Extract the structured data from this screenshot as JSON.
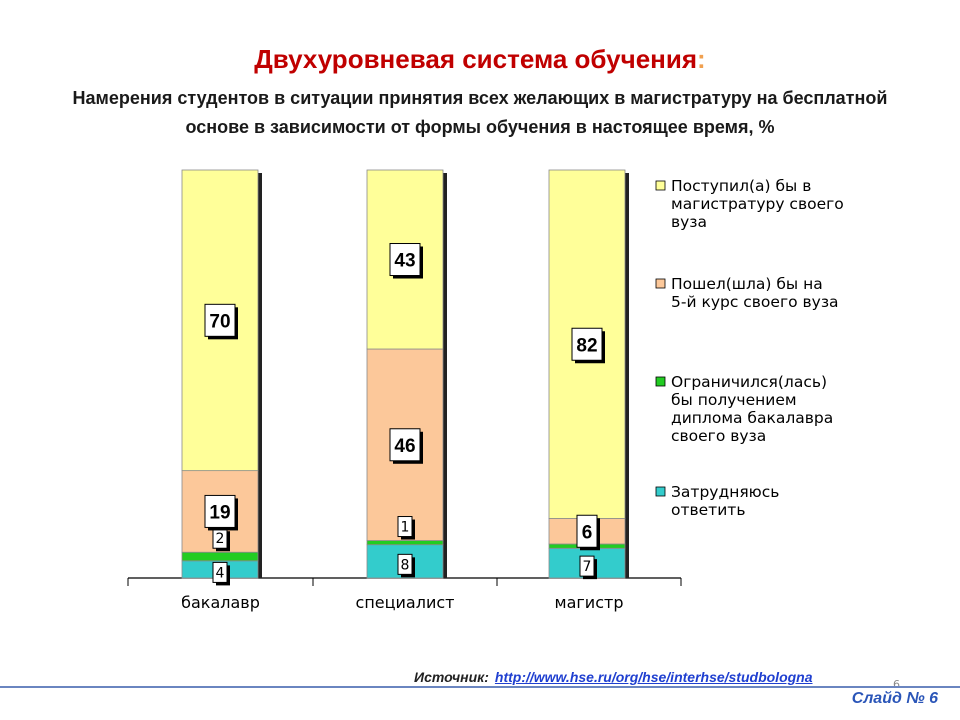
{
  "header": {
    "title": "Двухуровневая система обучения",
    "title_colon": ":",
    "subtitle": "Намерения студентов в ситуации принятия всех желающих в магистратуру на бесплатной основе в зависимости от формы обучения в настоящее время, %"
  },
  "chart_data": {
    "type": "bar",
    "stacked": true,
    "categories": [
      "бакалавр",
      "специалист",
      "магистр"
    ],
    "series": [
      {
        "name": "Затрудняюсь ответить",
        "values": [
          4,
          8,
          7
        ],
        "color": "#33cccc"
      },
      {
        "name": "Ограничился(лась) бы получением диплома бакалавра своего вуза",
        "values": [
          2,
          1,
          1
        ],
        "color": "#22cc22"
      },
      {
        "name": "Пошел(шла) бы на 5-й курс своего вуза",
        "values": [
          19,
          46,
          6
        ],
        "color": "#fcc89a"
      },
      {
        "name": "Поступил(а) бы в магистратуру своего вуза",
        "values": [
          70,
          43,
          82
        ],
        "color": "#ffff99"
      }
    ],
    "legend_lines": [
      [
        "Поступил(а) бы в",
        "магистратуру своего",
        "вуза"
      ],
      [
        "Пошел(шла) бы на",
        "5-й курс своего вуза"
      ],
      [
        "Ограничился(лась)",
        "бы получением",
        "диплома бакалавра",
        "своего вуза"
      ],
      [
        "Затрудняюсь",
        "ответить"
      ]
    ],
    "legend_placement": "right",
    "grid": false
  },
  "footer": {
    "source_label": "Источник:",
    "source_url": "http://www.hse.ru/org/hse/interhse/studbologna",
    "page_small": "6",
    "slide_label": "Слайд № 6"
  }
}
